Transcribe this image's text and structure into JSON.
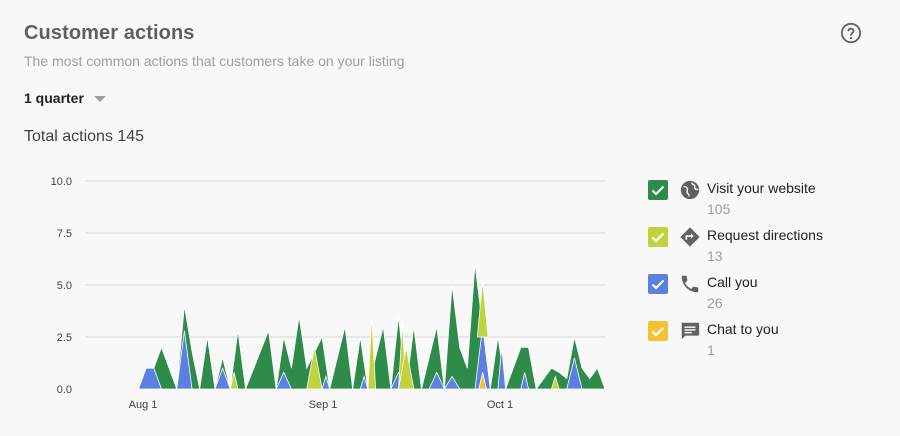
{
  "header": {
    "title": "Customer actions",
    "subtitle": "The most common actions that customers take on your listing",
    "help_icon": "help-circle-icon"
  },
  "period": {
    "selected": "1 quarter"
  },
  "total": {
    "label": "Total actions 145"
  },
  "legend": [
    {
      "name": "Visit your website",
      "count": "105",
      "color": "#2e8b4a",
      "icon": "globe-icon",
      "checked": true
    },
    {
      "name": "Request directions",
      "count": "13",
      "color": "#c0d33c",
      "icon": "directions-icon",
      "checked": true
    },
    {
      "name": "Call you",
      "count": "26",
      "color": "#5b7fe3",
      "icon": "phone-icon",
      "checked": true
    },
    {
      "name": "Chat to you",
      "count": "1",
      "color": "#f1c232",
      "icon": "chat-icon",
      "checked": true
    }
  ],
  "chart_data": {
    "type": "area",
    "stacked": true,
    "x_ticks": [
      "Aug 1",
      "Sep 1",
      "Oct 1"
    ],
    "y_ticks": [
      "10.0",
      "7.5",
      "5.0",
      "2.5",
      "0.0"
    ],
    "ylim": [
      0,
      10
    ],
    "grid": true,
    "series": [
      {
        "name": "Visit your website",
        "color": "#2e8b4a",
        "points": [
          [
            0,
            0
          ],
          [
            7,
            0
          ],
          [
            9,
            1
          ],
          [
            10,
            2
          ],
          [
            11,
            1
          ],
          [
            12,
            0
          ],
          [
            13,
            4
          ],
          [
            14,
            1.8
          ],
          [
            15,
            0
          ],
          [
            16,
            2.5
          ],
          [
            17,
            0
          ],
          [
            18,
            1.5
          ],
          [
            19,
            0
          ],
          [
            20,
            2.8
          ],
          [
            21,
            0
          ],
          [
            24,
            2.8
          ],
          [
            25,
            0
          ],
          [
            26,
            2.5
          ],
          [
            27,
            1
          ],
          [
            28,
            3.5
          ],
          [
            29,
            1
          ],
          [
            31,
            2.5
          ],
          [
            32,
            0
          ],
          [
            34,
            3
          ],
          [
            35,
            0
          ],
          [
            36,
            2.5
          ],
          [
            37,
            0
          ],
          [
            39,
            3
          ],
          [
            40,
            0
          ],
          [
            41,
            3.5
          ],
          [
            42,
            0
          ],
          [
            43,
            3
          ],
          [
            44,
            0
          ],
          [
            46,
            3
          ],
          [
            47,
            0
          ],
          [
            48,
            5
          ],
          [
            49,
            2
          ],
          [
            50,
            1
          ],
          [
            51,
            6
          ],
          [
            52,
            3
          ],
          [
            53,
            0
          ],
          [
            54,
            2.5
          ],
          [
            55,
            0
          ],
          [
            57,
            2
          ],
          [
            58,
            2
          ],
          [
            59,
            0
          ],
          [
            61,
            1
          ],
          [
            62,
            0.8
          ],
          [
            63,
            0.5
          ],
          [
            64,
            2.5
          ],
          [
            65,
            1
          ],
          [
            66,
            0.5
          ],
          [
            67,
            1
          ],
          [
            68,
            0
          ]
        ]
      }
    ],
    "overlay_series": [
      {
        "name": "Request directions",
        "color": "#c0d33c",
        "note": "stacked"
      },
      {
        "name": "Call you",
        "color": "#5b7fe3",
        "note": "stacked"
      },
      {
        "name": "Chat to you",
        "color": "#f1c232",
        "note": "stacked"
      }
    ]
  }
}
